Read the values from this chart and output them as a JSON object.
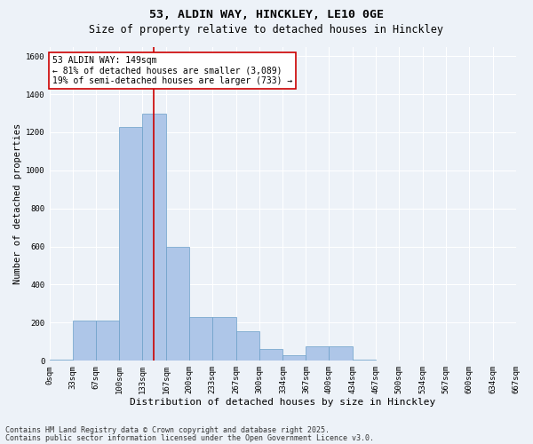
{
  "title1": "53, ALDIN WAY, HINCKLEY, LE10 0GE",
  "title2": "Size of property relative to detached houses in Hinckley",
  "xlabel": "Distribution of detached houses by size in Hinckley",
  "ylabel": "Number of detached properties",
  "bar_edges": [
    0,
    33,
    67,
    100,
    133,
    167,
    200,
    233,
    267,
    300,
    334,
    367,
    400,
    434,
    467,
    500,
    534,
    567,
    600,
    634,
    667
  ],
  "bar_heights": [
    5,
    210,
    210,
    1230,
    1300,
    600,
    230,
    230,
    155,
    60,
    30,
    75,
    75,
    5,
    0,
    0,
    0,
    0,
    0,
    0
  ],
  "bar_color": "#aec6e8",
  "bar_edgecolor": "#6a9fc8",
  "vline_x": 149,
  "vline_color": "#cc0000",
  "annotation_text": "53 ALDIN WAY: 149sqm\n← 81% of detached houses are smaller (3,089)\n19% of semi-detached houses are larger (733) →",
  "annotation_box_color": "#ffffff",
  "annotation_box_edgecolor": "#cc0000",
  "ylim": [
    0,
    1650
  ],
  "yticks": [
    0,
    200,
    400,
    600,
    800,
    1000,
    1200,
    1400,
    1600
  ],
  "background_color": "#edf2f8",
  "grid_color": "#ffffff",
  "footnote1": "Contains HM Land Registry data © Crown copyright and database right 2025.",
  "footnote2": "Contains public sector information licensed under the Open Government Licence v3.0.",
  "title1_fontsize": 9.5,
  "title2_fontsize": 8.5,
  "xlabel_fontsize": 8,
  "ylabel_fontsize": 7.5,
  "tick_fontsize": 6.5,
  "annot_fontsize": 7,
  "footnote_fontsize": 6
}
